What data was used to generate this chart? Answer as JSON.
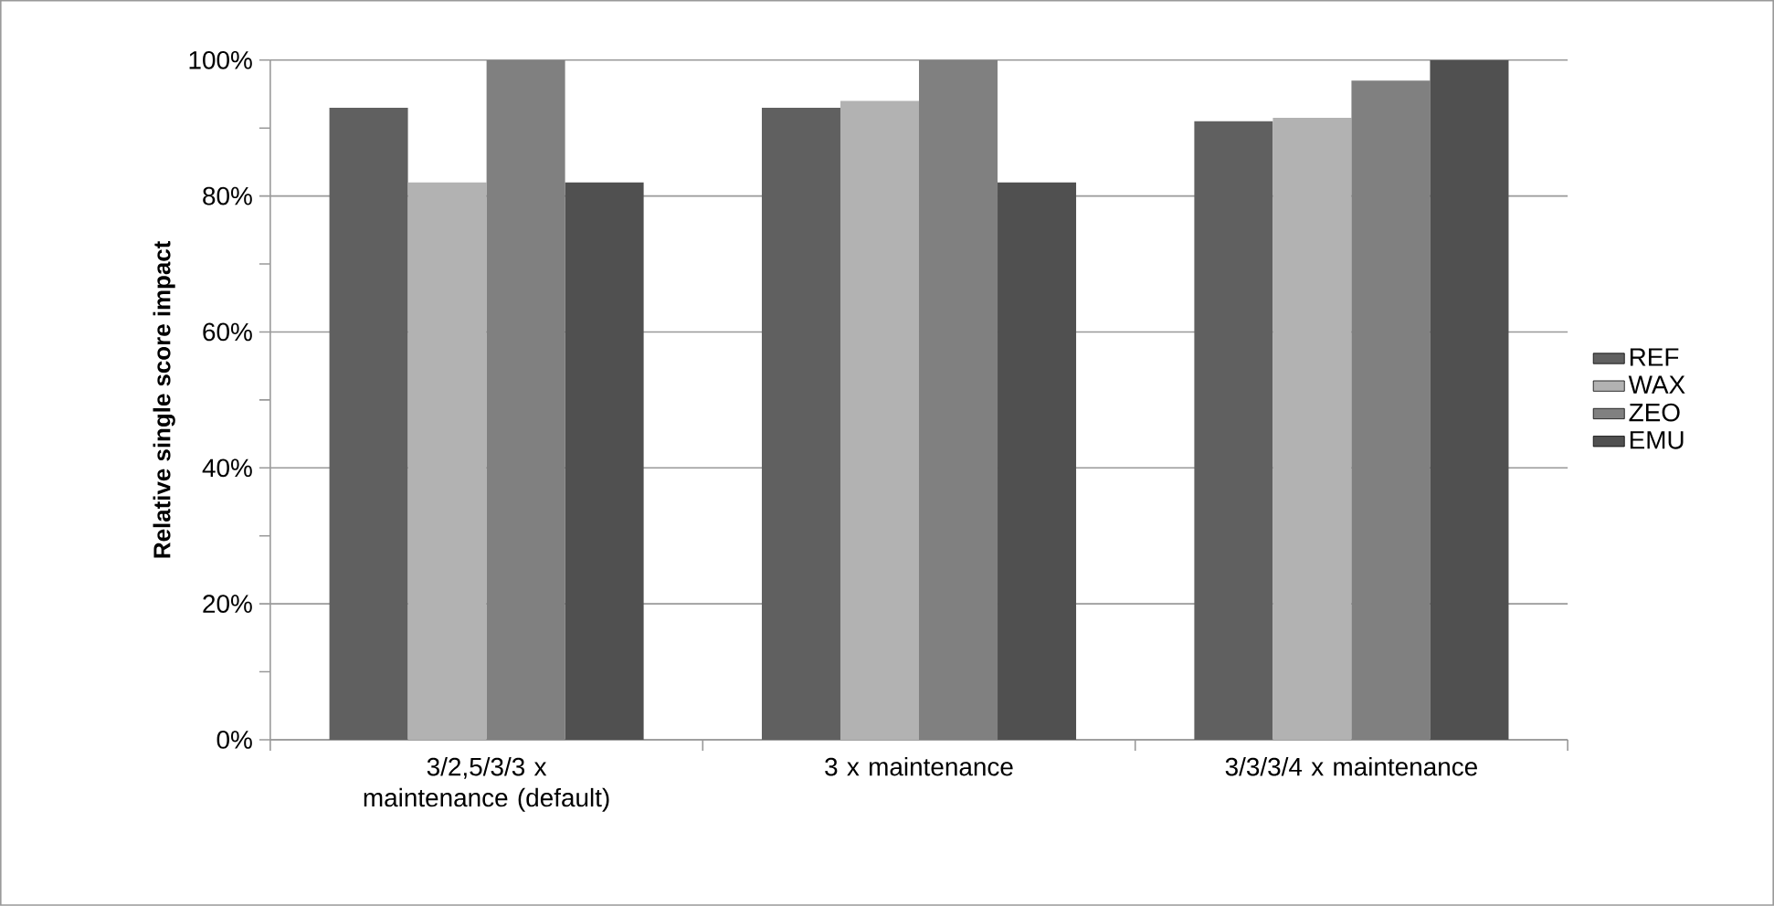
{
  "chart_data": {
    "type": "bar",
    "ylabel": "Relative single score impact",
    "categories": [
      "3/2,5/3/3 x maintenance (default)",
      "3 x maintenance",
      "3/3/3/4 x maintenance"
    ],
    "series": [
      {
        "name": "REF",
        "color": "#606060",
        "values": [
          93,
          93,
          91
        ]
      },
      {
        "name": "WAX",
        "color": "#b2b2b2",
        "values": [
          82,
          94,
          91.5
        ]
      },
      {
        "name": "ZEO",
        "color": "#808080",
        "values": [
          100,
          100,
          97
        ]
      },
      {
        "name": "EMU",
        "color": "#505050",
        "values": [
          82,
          82,
          100
        ]
      }
    ],
    "ylim": [
      0,
      100
    ],
    "yticks": [
      {
        "value": 0,
        "label": "0%"
      },
      {
        "value": 10,
        "label": null
      },
      {
        "value": 20,
        "label": "20%"
      },
      {
        "value": 30,
        "label": null
      },
      {
        "value": 40,
        "label": "40%"
      },
      {
        "value": 50,
        "label": null
      },
      {
        "value": 60,
        "label": "60%"
      },
      {
        "value": 70,
        "label": null
      },
      {
        "value": 80,
        "label": "80%"
      },
      {
        "value": 90,
        "label": null
      },
      {
        "value": 100,
        "label": "100%"
      }
    ],
    "grid": "y",
    "legend": "right"
  }
}
